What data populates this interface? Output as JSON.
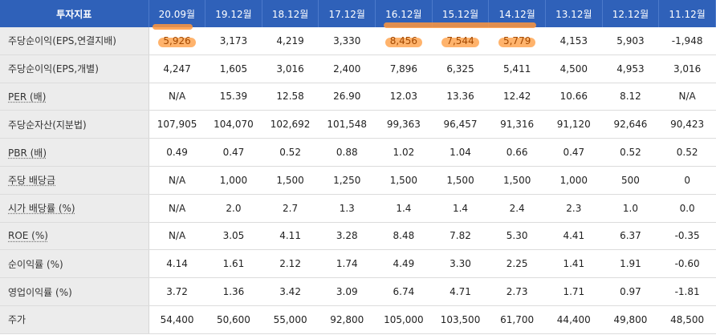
{
  "header": {
    "label": "투자지표",
    "periods": [
      "20.09월",
      "19.12월",
      "18.12월",
      "17.12월",
      "16.12월",
      "15.12월",
      "14.12월",
      "13.12월",
      "12.12월",
      "11.12월"
    ]
  },
  "rows": [
    {
      "label": "주당순이익(EPS,연결지배)",
      "underline": false,
      "values": [
        "5,926",
        "3,173",
        "4,219",
        "3,330",
        "8,456",
        "7,544",
        "5,779",
        "4,153",
        "5,903",
        "-1,948"
      ]
    },
    {
      "label": "주당순이익(EPS,개별)",
      "underline": false,
      "values": [
        "4,247",
        "1,605",
        "3,016",
        "2,400",
        "7,896",
        "6,325",
        "5,411",
        "4,500",
        "4,953",
        "3,016"
      ]
    },
    {
      "label": "PER (배)",
      "underline": true,
      "values": [
        "N/A",
        "15.39",
        "12.58",
        "26.90",
        "12.03",
        "13.36",
        "12.42",
        "10.66",
        "8.12",
        "N/A"
      ]
    },
    {
      "label": "주당순자산(지분법)",
      "underline": false,
      "values": [
        "107,905",
        "104,070",
        "102,692",
        "101,548",
        "99,363",
        "96,457",
        "91,316",
        "91,120",
        "92,646",
        "90,423"
      ]
    },
    {
      "label": "PBR (배)",
      "underline": true,
      "values": [
        "0.49",
        "0.47",
        "0.52",
        "0.88",
        "1.02",
        "1.04",
        "0.66",
        "0.47",
        "0.52",
        "0.52"
      ]
    },
    {
      "label": "주당 배당금",
      "underline": true,
      "values": [
        "N/A",
        "1,000",
        "1,500",
        "1,250",
        "1,500",
        "1,500",
        "1,500",
        "1,000",
        "500",
        "0"
      ]
    },
    {
      "label": "시가 배당률 (%)",
      "underline": true,
      "values": [
        "N/A",
        "2.0",
        "2.7",
        "1.3",
        "1.4",
        "1.4",
        "2.4",
        "2.3",
        "1.0",
        "0.0"
      ]
    },
    {
      "label": "ROE (%)",
      "underline": true,
      "values": [
        "N/A",
        "3.05",
        "4.11",
        "3.28",
        "8.48",
        "7.82",
        "5.30",
        "4.41",
        "6.37",
        "-0.35"
      ]
    },
    {
      "label": "순이익률 (%)",
      "underline": false,
      "values": [
        "4.14",
        "1.61",
        "2.12",
        "1.74",
        "4.49",
        "3.30",
        "2.25",
        "1.41",
        "1.91",
        "-0.60"
      ]
    },
    {
      "label": "영업이익률 (%)",
      "underline": false,
      "values": [
        "3.72",
        "1.36",
        "3.42",
        "3.09",
        "6.74",
        "4.71",
        "2.73",
        "1.71",
        "0.97",
        "-1.81"
      ]
    },
    {
      "label": "주가",
      "underline": false,
      "values": [
        "54,400",
        "50,600",
        "55,000",
        "92,800",
        "105,000",
        "103,500",
        "61,700",
        "44,400",
        "49,800",
        "48,500"
      ]
    }
  ],
  "highlights": {
    "color": "#ff9a3c",
    "cells": [
      [
        0,
        0
      ],
      [
        0,
        4
      ],
      [
        0,
        5
      ],
      [
        0,
        6
      ]
    ]
  }
}
